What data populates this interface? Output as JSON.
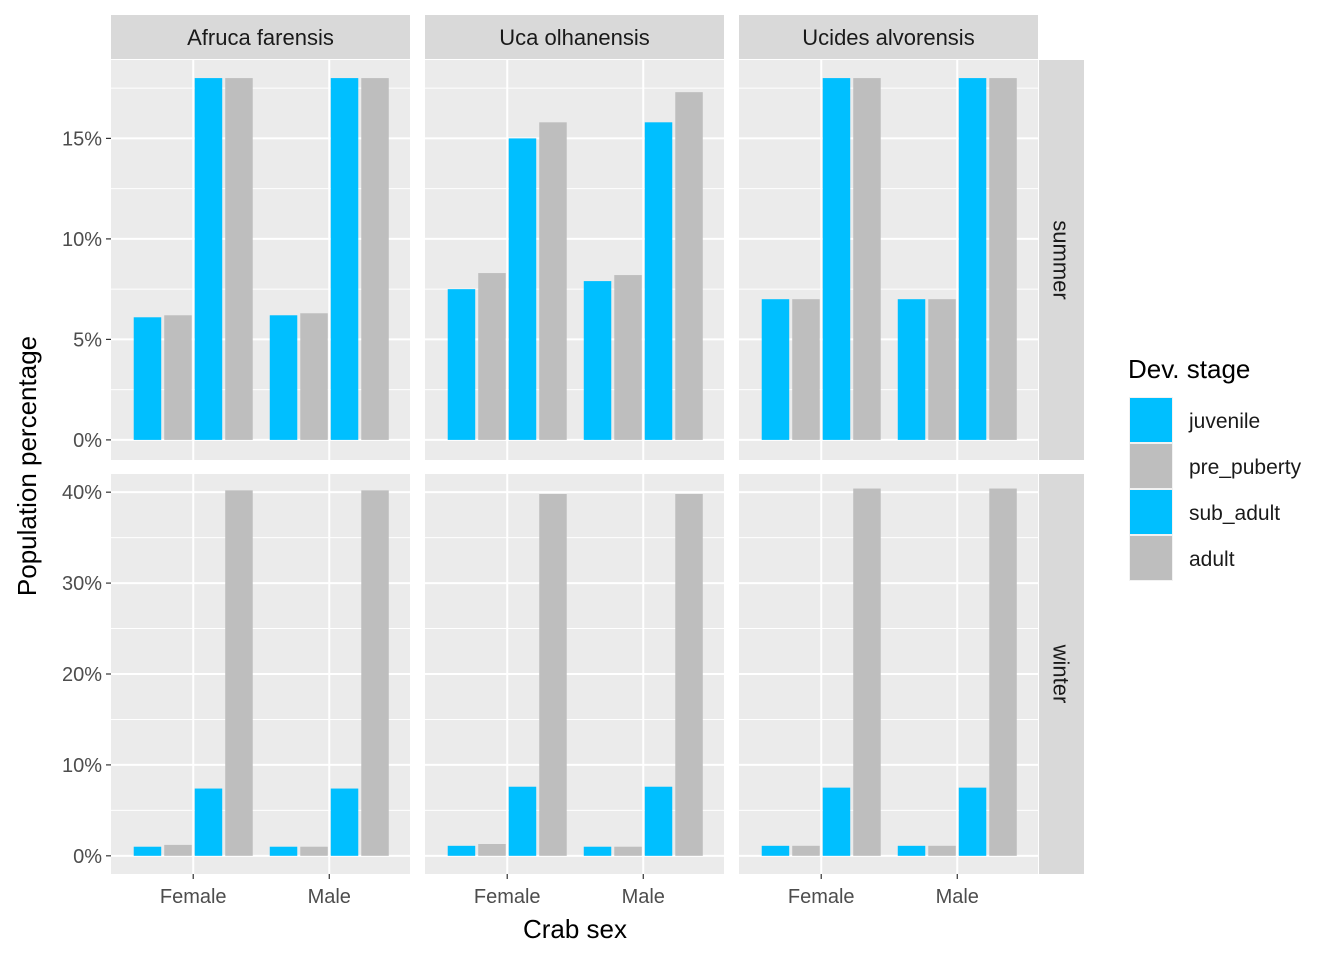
{
  "chart_data": {
    "type": "bar",
    "facet_cols": [
      "Afruca farensis",
      "Uca olhanensis",
      "Ucides alvorensis"
    ],
    "facet_rows": [
      "summer",
      "winter"
    ],
    "categories": [
      "Female",
      "Male"
    ],
    "xlabel": "Crab sex",
    "ylabel": "Population percentage",
    "legend": {
      "title": "Dev. stage",
      "position": "right",
      "items": [
        {
          "name": "juvenile",
          "color": "#00BFFF"
        },
        {
          "name": "pre_puberty",
          "color": "#BEBEBE"
        },
        {
          "name": "sub_adult",
          "color": "#00BFFF"
        },
        {
          "name": "adult",
          "color": "#BEBEBE"
        }
      ]
    },
    "rows": [
      {
        "name": "summer",
        "ylim": [
          -1,
          18.9
        ],
        "yticks": [
          0,
          5,
          10,
          15
        ],
        "yticklabels": [
          "0%",
          "5%",
          "10%",
          "15%"
        ]
      },
      {
        "name": "winter",
        "ylim": [
          -2,
          42
        ],
        "yticks": [
          0,
          10,
          20,
          30,
          40
        ],
        "yticklabels": [
          "0%",
          "10%",
          "20%",
          "30%",
          "40%"
        ]
      }
    ],
    "panels": [
      {
        "row": "summer",
        "col": "Afruca farensis",
        "series": {
          "Female": [
            6.1,
            6.2,
            18.0,
            18.0
          ],
          "Male": [
            6.2,
            6.3,
            18.0,
            18.0
          ]
        }
      },
      {
        "row": "summer",
        "col": "Uca olhanensis",
        "series": {
          "Female": [
            7.5,
            8.3,
            15.0,
            15.8
          ],
          "Male": [
            7.9,
            8.2,
            15.8,
            17.3
          ]
        }
      },
      {
        "row": "summer",
        "col": "Ucides alvorensis",
        "series": {
          "Female": [
            7.0,
            7.0,
            18.0,
            18.0
          ],
          "Male": [
            7.0,
            7.0,
            18.0,
            18.0
          ]
        }
      },
      {
        "row": "winter",
        "col": "Afruca farensis",
        "series": {
          "Female": [
            1.0,
            1.2,
            7.4,
            40.2
          ],
          "Male": [
            1.0,
            1.0,
            7.4,
            40.2
          ]
        }
      },
      {
        "row": "winter",
        "col": "Uca olhanensis",
        "series": {
          "Female": [
            1.1,
            1.3,
            7.6,
            39.8
          ],
          "Male": [
            1.0,
            1.0,
            7.6,
            39.8
          ]
        }
      },
      {
        "row": "winter",
        "col": "Ucides alvorensis",
        "series": {
          "Female": [
            1.1,
            1.1,
            7.5,
            40.4
          ],
          "Male": [
            1.1,
            1.1,
            7.5,
            40.4
          ]
        }
      }
    ],
    "grid": true
  }
}
